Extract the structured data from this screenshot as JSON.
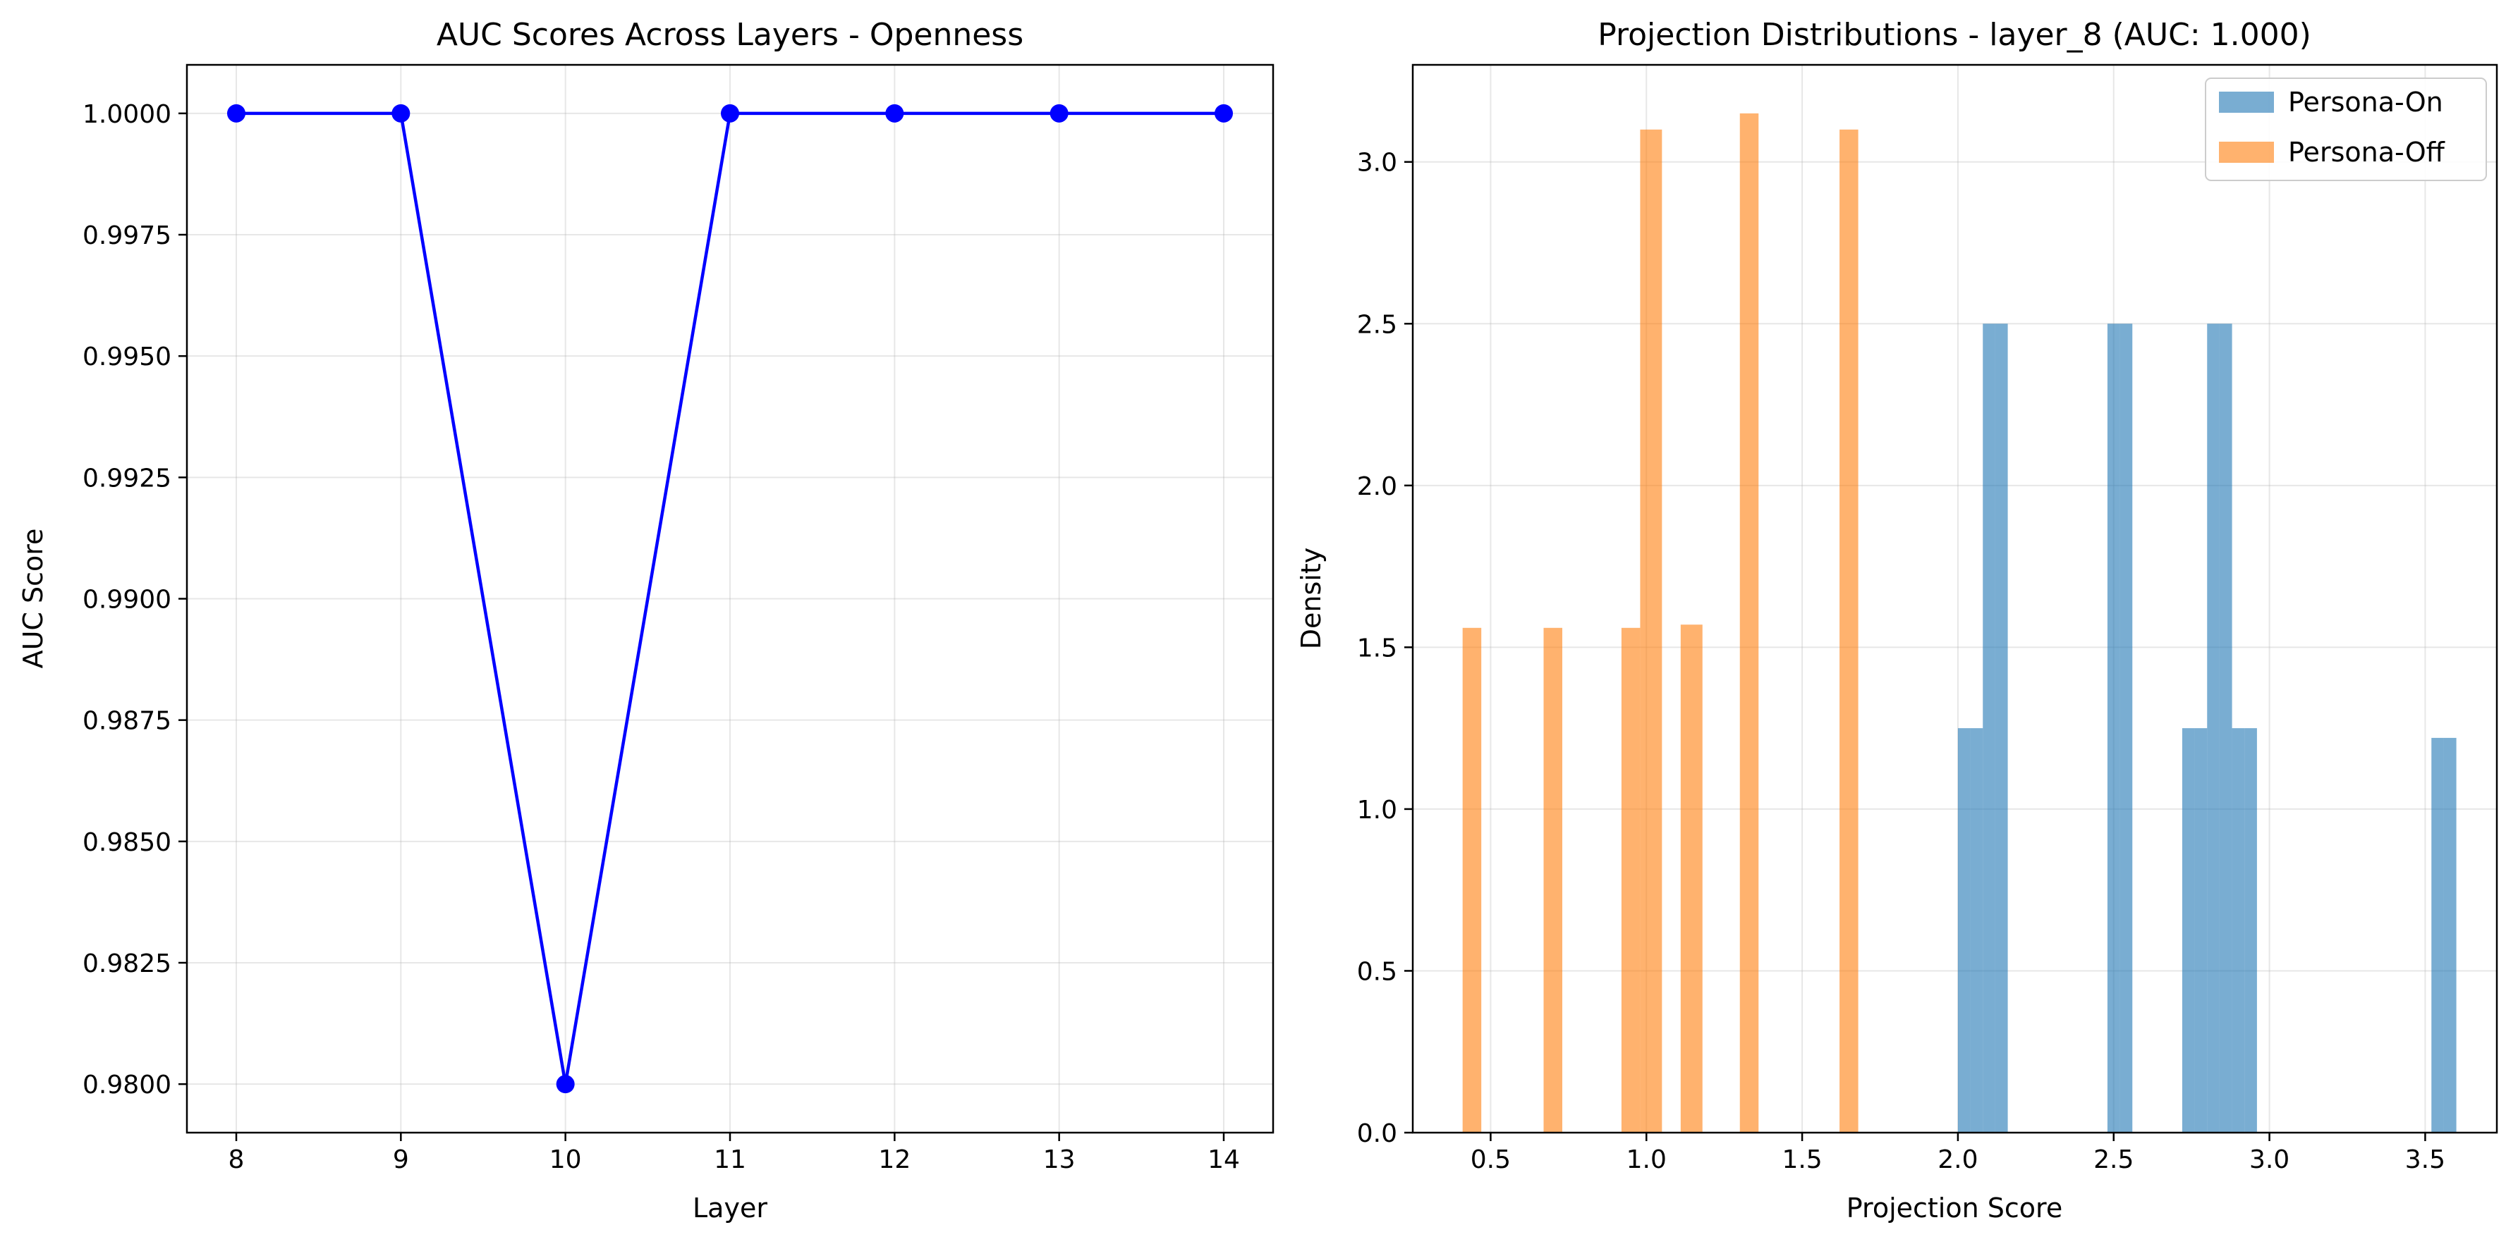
{
  "chart_data": [
    {
      "type": "line",
      "title": "AUC Scores Across Layers - Openness",
      "xlabel": "Layer",
      "ylabel": "AUC Score",
      "x": [
        8,
        9,
        10,
        11,
        12,
        13,
        14
      ],
      "y": [
        1.0,
        1.0,
        0.98,
        1.0,
        1.0,
        1.0,
        1.0
      ],
      "xlim": [
        7.7,
        14.3
      ],
      "ylim": [
        0.979,
        1.001
      ],
      "xticks": [
        "8",
        "9",
        "10",
        "11",
        "12",
        "13",
        "14"
      ],
      "yticks": [
        "0.9800",
        "0.9825",
        "0.9850",
        "0.9875",
        "0.9900",
        "0.9925",
        "0.9950",
        "0.9975",
        "1.0000"
      ],
      "ytick_values": [
        0.98,
        0.9825,
        0.985,
        0.9875,
        0.99,
        0.9925,
        0.995,
        0.9975,
        1.0
      ],
      "grid": true,
      "color": "#0000ff",
      "marker": "circle"
    },
    {
      "type": "histogram",
      "title": "Projection Distributions - layer_8 (AUC: 1.000)",
      "xlabel": "Projection Score",
      "ylabel": "Density",
      "xlim": [
        0.25,
        3.73
      ],
      "ylim": [
        0,
        3.3
      ],
      "xticks": [
        "0.5",
        "1.0",
        "1.5",
        "2.0",
        "2.5",
        "3.0",
        "3.5"
      ],
      "xtick_values": [
        0.5,
        1.0,
        1.5,
        2.0,
        2.5,
        3.0,
        3.5
      ],
      "yticks": [
        "0.0",
        "0.5",
        "1.0",
        "1.5",
        "2.0",
        "2.5",
        "3.0"
      ],
      "ytick_values": [
        0,
        0.5,
        1.0,
        1.5,
        2.0,
        2.5,
        3.0
      ],
      "grid": true,
      "legend_position": "top-right",
      "series": [
        {
          "name": "Persona-On",
          "color": "#1f77b4",
          "alpha": 0.6,
          "bins": [
            {
              "x0": 2.0,
              "x1": 2.04,
              "density": 1.25
            },
            {
              "x0": 2.04,
              "x1": 2.08,
              "density": 1.25
            },
            {
              "x0": 2.08,
              "x1": 2.12,
              "density": 2.5
            },
            {
              "x0": 2.12,
              "x1": 2.16,
              "density": 2.5
            },
            {
              "x0": 2.48,
              "x1": 2.52,
              "density": 2.5
            },
            {
              "x0": 2.52,
              "x1": 2.56,
              "density": 2.5
            },
            {
              "x0": 2.72,
              "x1": 2.76,
              "density": 1.25
            },
            {
              "x0": 2.76,
              "x1": 2.8,
              "density": 1.25
            },
            {
              "x0": 2.8,
              "x1": 2.84,
              "density": 2.5
            },
            {
              "x0": 2.84,
              "x1": 2.88,
              "density": 2.5
            },
            {
              "x0": 2.88,
              "x1": 2.92,
              "density": 1.25
            },
            {
              "x0": 2.92,
              "x1": 2.96,
              "density": 1.25
            },
            {
              "x0": 3.52,
              "x1": 3.56,
              "density": 1.22
            },
            {
              "x0": 3.56,
              "x1": 3.6,
              "density": 1.22
            }
          ]
        },
        {
          "name": "Persona-Off",
          "color": "#ff7f0e",
          "alpha": 0.6,
          "bins": [
            {
              "x0": 0.41,
              "x1": 0.47,
              "density": 1.56
            },
            {
              "x0": 0.67,
              "x1": 0.73,
              "density": 1.56
            },
            {
              "x0": 0.92,
              "x1": 0.98,
              "density": 1.56
            },
            {
              "x0": 0.98,
              "x1": 1.05,
              "density": 3.1
            },
            {
              "x0": 1.11,
              "x1": 1.18,
              "density": 1.57
            },
            {
              "x0": 1.3,
              "x1": 1.36,
              "density": 3.15
            },
            {
              "x0": 1.62,
              "x1": 1.68,
              "density": 3.1
            }
          ]
        }
      ]
    }
  ]
}
